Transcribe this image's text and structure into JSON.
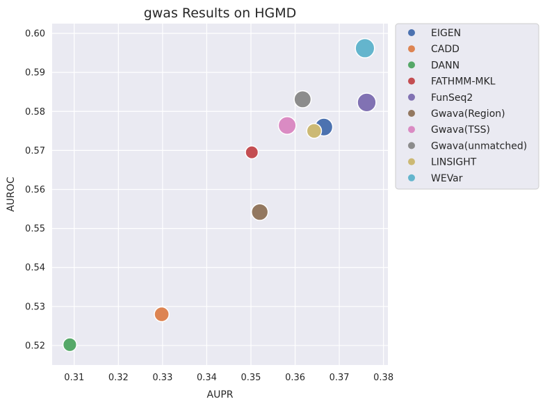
{
  "chart_data": {
    "type": "scatter",
    "title": "gwas Results on HGMD",
    "xlabel": "AUPR",
    "ylabel": "AUROC",
    "xlim": [
      0.305,
      0.381
    ],
    "ylim": [
      0.515,
      0.6025
    ],
    "xticks": [
      "0.31",
      "0.32",
      "0.33",
      "0.34",
      "0.35",
      "0.36",
      "0.37",
      "0.38"
    ],
    "yticks": [
      "0.52",
      "0.53",
      "0.54",
      "0.55",
      "0.56",
      "0.57",
      "0.58",
      "0.59",
      "0.60"
    ],
    "grid": true,
    "legend_position": "outside right",
    "background": "#eaeaf2",
    "series": [
      {
        "name": "EIGEN",
        "color": "#4c72b0",
        "x": 0.3665,
        "y": 0.576,
        "size": 0.72
      },
      {
        "name": "CADD",
        "color": "#dd8452",
        "x": 0.3298,
        "y": 0.528,
        "size": 0.45
      },
      {
        "name": "DANN",
        "color": "#55a868",
        "x": 0.309,
        "y": 0.5202,
        "size": 0.35
      },
      {
        "name": "FATHMM-MKL",
        "color": "#c44e52",
        "x": 0.3502,
        "y": 0.5695,
        "size": 0.28
      },
      {
        "name": "FunSeq2",
        "color": "#8172b3",
        "x": 0.3762,
        "y": 0.5823,
        "size": 0.8
      },
      {
        "name": "Gwava(Region)",
        "color": "#937860",
        "x": 0.352,
        "y": 0.5542,
        "size": 0.62
      },
      {
        "name": "Gwava(TSS)",
        "color": "#da8bc3",
        "x": 0.3582,
        "y": 0.5764,
        "size": 0.72
      },
      {
        "name": "Gwava(unmatched)",
        "color": "#8c8c8c",
        "x": 0.3617,
        "y": 0.5831,
        "size": 0.65
      },
      {
        "name": "LINSIGHT",
        "color": "#ccb974",
        "x": 0.3643,
        "y": 0.575,
        "size": 0.45
      },
      {
        "name": "WEVar",
        "color": "#64b5cd",
        "x": 0.3758,
        "y": 0.5962,
        "size": 0.85
      }
    ]
  }
}
